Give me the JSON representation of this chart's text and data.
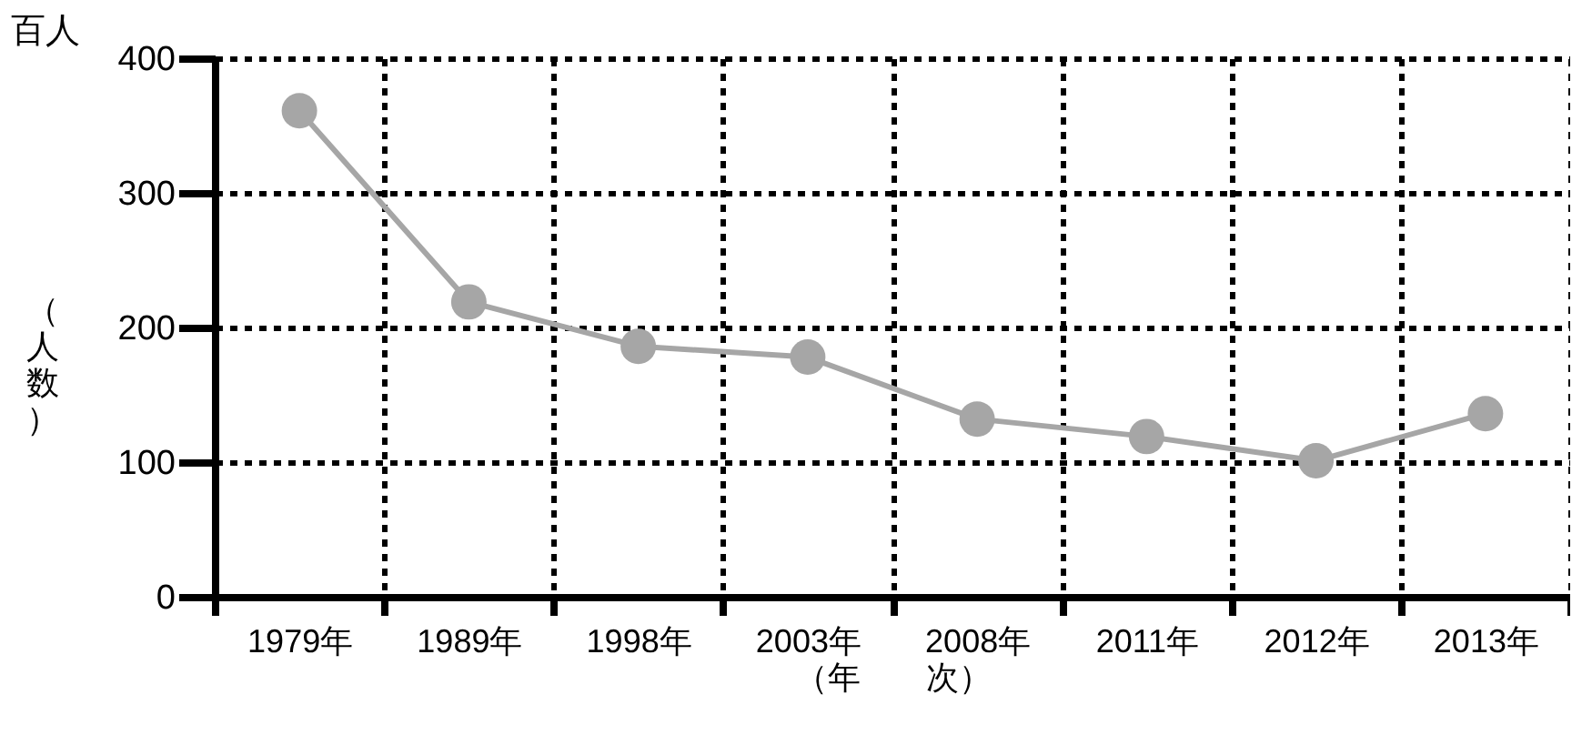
{
  "chart_data": {
    "type": "line",
    "categories": [
      "1979年",
      "1989年",
      "1998年",
      "2003年",
      "2008年",
      "2011年",
      "2012年",
      "2013年"
    ],
    "series": [
      {
        "color": "#a6a6a6",
        "values": [
          361,
          219,
          186,
          178,
          132,
          119,
          101,
          136
        ]
      }
    ],
    "ylim": [
      0,
      400
    ],
    "yticks": [
      0,
      100,
      200,
      300,
      400
    ],
    "ylabel": "（人数）",
    "xlabel": "（年　　次）",
    "annotations": [
      "百人"
    ],
    "grid": true,
    "marker": "circle",
    "line_style": "solid"
  }
}
